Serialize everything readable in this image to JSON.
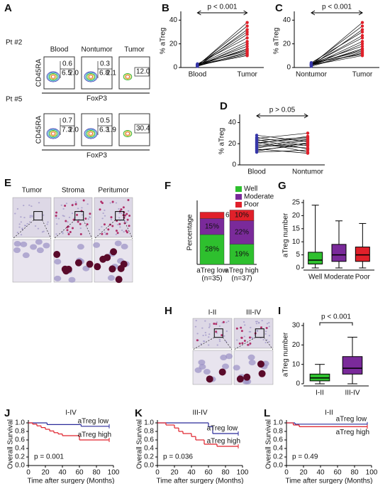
{
  "figure": {
    "panels": [
      {
        "label": "A",
        "columns": [
          "Blood",
          "Nontumor",
          "Tumor"
        ],
        "x_label": "FoxP3",
        "y_label": "CD45RA",
        "rows": [
          {
            "name": "Pt #2",
            "gates": [
              [
                "0.6",
                "6.5",
                "2.0"
              ],
              [
                "0.3",
                "6.8",
                "2.1"
              ],
              [
                "12.0"
              ]
            ]
          },
          {
            "name": "Pt #5",
            "gates": [
              [
                "0.7",
                "7.3",
                "2.0"
              ],
              [
                "0.5",
                "6.3",
                "1.9"
              ],
              [
                "30.4"
              ]
            ]
          }
        ]
      },
      {
        "label": "B",
        "chart": {
          "type": "paired",
          "categories": [
            "Blood",
            "Tumor"
          ],
          "colors": [
            "#3636a8",
            "#e0202a"
          ],
          "y_label": "% aTreg",
          "annotation": "p < 0.001",
          "ylim": [
            0,
            45
          ],
          "yticks": [
            0,
            20,
            40
          ],
          "values": [
            [
              1.5,
              38
            ],
            [
              2,
              35
            ],
            [
              1,
              32
            ],
            [
              2.5,
              30
            ],
            [
              1.5,
              28
            ],
            [
              3,
              25
            ],
            [
              2,
              22
            ],
            [
              1,
              20
            ],
            [
              2,
              18
            ],
            [
              1.5,
              16
            ],
            [
              2.5,
              15
            ],
            [
              3,
              14
            ],
            [
              1,
              13
            ],
            [
              2,
              12
            ],
            [
              1.5,
              11
            ],
            [
              2,
              10
            ]
          ]
        }
      },
      {
        "label": "C",
        "chart": {
          "type": "paired",
          "categories": [
            "Nontumor",
            "Tumor"
          ],
          "colors": [
            "#3636a8",
            "#e0202a"
          ],
          "y_label": "% aTreg",
          "annotation": "p < 0.001",
          "ylim": [
            0,
            45
          ],
          "yticks": [
            0,
            20,
            40
          ],
          "values": [
            [
              2,
              38
            ],
            [
              3,
              35
            ],
            [
              1.5,
              32
            ],
            [
              4,
              30
            ],
            [
              2.5,
              27
            ],
            [
              3,
              25
            ],
            [
              2,
              22
            ],
            [
              1.5,
              20
            ],
            [
              3.5,
              18
            ],
            [
              2,
              16
            ],
            [
              2.5,
              15
            ],
            [
              3,
              14
            ],
            [
              1,
              13
            ],
            [
              2,
              12
            ],
            [
              4,
              11
            ],
            [
              2,
              10
            ]
          ]
        }
      },
      {
        "label": "D",
        "chart": {
          "type": "paired",
          "categories": [
            "Blood",
            "Nontumor"
          ],
          "colors": [
            "#3636a8",
            "#e0202a"
          ],
          "y_label": "% aTreg",
          "annotation": "p > 0.05",
          "ylim": [
            0,
            45
          ],
          "yticks": [
            0,
            20,
            40
          ],
          "values": [
            [
              28,
              22
            ],
            [
              26,
              18
            ],
            [
              25,
              30
            ],
            [
              24,
              15
            ],
            [
              23,
              26
            ],
            [
              22,
              12
            ],
            [
              21,
              25
            ],
            [
              20,
              27
            ],
            [
              19,
              16
            ],
            [
              18,
              24
            ],
            [
              17,
              20
            ],
            [
              16,
              23
            ],
            [
              15,
              11
            ],
            [
              14,
              19
            ],
            [
              13,
              21
            ],
            [
              12,
              14
            ]
          ]
        }
      },
      {
        "label": "E",
        "columns": [
          "Tumor",
          "Stroma",
          "Peritumor"
        ]
      },
      {
        "label": "F",
        "chart": {
          "type": "stacked_bar",
          "categories": [
            "aTreg low",
            "aTreg high"
          ],
          "category_notes": [
            "(n=35)",
            "(n=37)"
          ],
          "y_label": "Percentage",
          "ylim": [
            0,
            60
          ],
          "series": [
            {
              "name": "Well",
              "color": "#2ec02e",
              "values": [
                28,
                19
              ],
              "value_labels": [
                "28%",
                "19%"
              ]
            },
            {
              "name": "Moderate",
              "color": "#7a2a9a",
              "values": [
                15,
                22
              ],
              "value_labels": [
                "15%",
                "22%"
              ]
            },
            {
              "name": "Poor",
              "color": "#e0202a",
              "values": [
                6,
                10
              ],
              "value_labels": [
                "6%",
                "10%"
              ]
            }
          ]
        }
      },
      {
        "label": "G",
        "chart": {
          "type": "box",
          "categories": [
            "Well",
            "Moderate",
            "Poor"
          ],
          "colors": [
            "#2ec02e",
            "#7a2a9a",
            "#e0202a"
          ],
          "y_label": "aTreg number",
          "ylim": [
            0,
            25
          ],
          "yticks": [
            0,
            5,
            10,
            15,
            20,
            25
          ],
          "boxes": [
            [
              0,
              1.5,
              3,
              6,
              24
            ],
            [
              0,
              2.5,
              5,
              9,
              18
            ],
            [
              0,
              2.5,
              5,
              8,
              17
            ]
          ]
        }
      },
      {
        "label": "H",
        "columns": [
          "I-II",
          "III-IV"
        ]
      },
      {
        "label": "I",
        "chart": {
          "type": "box",
          "categories": [
            "I-II",
            "III-IV"
          ],
          "colors": [
            "#2ec02e",
            "#7a2a9a"
          ],
          "y_label": "aTreg number",
          "annotation": "p < 0.001",
          "ylim": [
            0,
            30
          ],
          "yticks": [
            0,
            10,
            20,
            30
          ],
          "boxes": [
            [
              0,
              1.5,
              3,
              5,
              10
            ],
            [
              0,
              5,
              8,
              14,
              24
            ]
          ]
        }
      },
      {
        "label": "J",
        "chart": {
          "type": "km",
          "title": "I-IV",
          "annotation": "p = 0.001",
          "x_label": "Time after surgery (Months)",
          "y_label": "Overall Survival",
          "xlim": [
            0,
            100
          ],
          "xticks": [
            0,
            20,
            40,
            60,
            80,
            100
          ],
          "ylim": [
            0,
            1
          ],
          "yticks": [
            {
              "value": 0,
              "label": "0.0"
            },
            {
              "value": 0.2,
              "label": "0.2"
            },
            {
              "value": 0.4,
              "label": "0.4"
            },
            {
              "value": 0.6,
              "label": "0.6"
            },
            {
              "value": 0.8,
              "label": "0.8"
            },
            {
              "value": 1,
              "label": "1.0"
            }
          ],
          "series": [
            {
              "name": "aTreg low",
              "color": "#2b2b9a",
              "x": [
                0,
                22,
                62,
                95
              ],
              "values": [
                1,
                0.96,
                0.92,
                0.92
              ]
            },
            {
              "name": "aTreg high",
              "color": "#e0202a",
              "x": [
                0,
                5,
                10,
                15,
                20,
                25,
                30,
                35,
                40,
                60,
                95
              ],
              "values": [
                1,
                0.97,
                0.93,
                0.89,
                0.85,
                0.81,
                0.77,
                0.74,
                0.7,
                0.6,
                0.6
              ]
            }
          ]
        }
      },
      {
        "label": "K",
        "chart": {
          "type": "km",
          "title": "III-IV",
          "annotation": "p = 0.036",
          "x_label": "Time after surgery (Months)",
          "y_label": "Overall Survival",
          "xlim": [
            0,
            100
          ],
          "xticks": [
            0,
            20,
            40,
            60,
            80,
            100
          ],
          "ylim": [
            0,
            1
          ],
          "yticks": [
            {
              "value": 0,
              "label": "0.0"
            },
            {
              "value": 0.2,
              "label": "0.2"
            },
            {
              "value": 0.4,
              "label": "0.4"
            },
            {
              "value": 0.6,
              "label": "0.6"
            },
            {
              "value": 0.8,
              "label": "0.8"
            },
            {
              "value": 1,
              "label": "1.0"
            }
          ],
          "series": [
            {
              "name": "aTreg low",
              "color": "#2b2b9a",
              "x": [
                0,
                60,
                65,
                95
              ],
              "values": [
                1,
                0.91,
                0.75,
                0.75
              ]
            },
            {
              "name": "aTreg high",
              "color": "#e0202a",
              "x": [
                0,
                10,
                20,
                25,
                30,
                40,
                45,
                55,
                70,
                95
              ],
              "values": [
                1,
                0.95,
                0.88,
                0.8,
                0.75,
                0.68,
                0.6,
                0.5,
                0.45,
                0.45
              ]
            }
          ]
        }
      },
      {
        "label": "L",
        "chart": {
          "type": "km",
          "title": "I-II",
          "annotation": "p = 0.49",
          "x_label": "Time after surgery (Months)",
          "y_label": "Overall Survival",
          "xlim": [
            0,
            100
          ],
          "xticks": [
            0,
            20,
            40,
            60,
            80,
            100
          ],
          "ylim": [
            0,
            1
          ],
          "yticks": [
            {
              "value": 0,
              "label": "0.0"
            },
            {
              "value": 0.2,
              "label": "0.2"
            },
            {
              "value": 0.4,
              "label": "0.4"
            },
            {
              "value": 0.6,
              "label": "0.6"
            },
            {
              "value": 0.8,
              "label": "0.8"
            },
            {
              "value": 1,
              "label": "1.0"
            }
          ],
          "series": [
            {
              "name": "aTreg low",
              "color": "#2b2b9a",
              "x": [
                0,
                10,
                95
              ],
              "values": [
                1,
                0.97,
                0.97
              ]
            },
            {
              "name": "aTreg high",
              "color": "#e0202a",
              "x": [
                0,
                8,
                15,
                95
              ],
              "values": [
                1,
                0.95,
                0.91,
                0.91
              ]
            }
          ]
        }
      }
    ]
  }
}
